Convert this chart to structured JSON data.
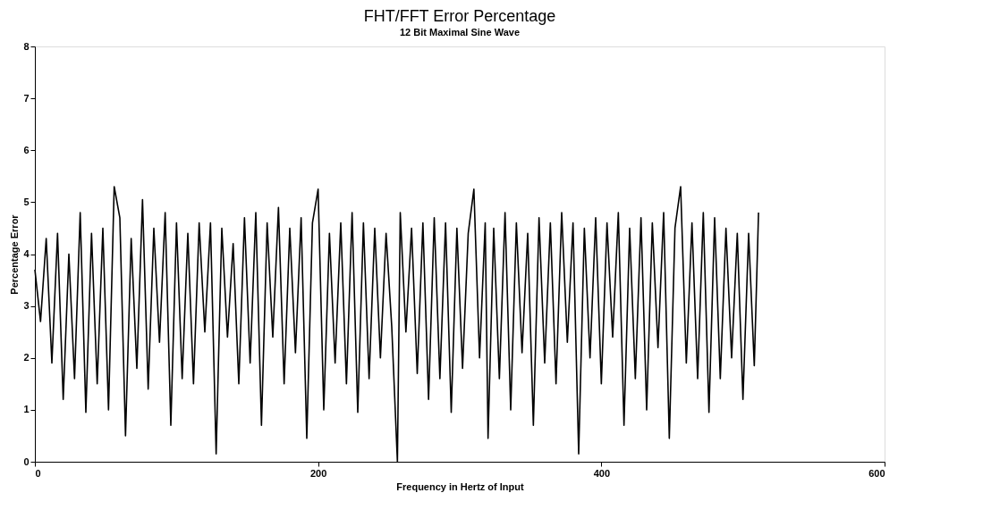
{
  "chart_data": {
    "type": "line",
    "title": "FHT/FFT Error Percentage",
    "subtitle": "12 Bit Maximal Sine Wave",
    "xlabel": "Frequency in Hertz of Input",
    "ylabel": "Percentage Error",
    "x": [
      0,
      4,
      8,
      12,
      16,
      20,
      24,
      28,
      32,
      36,
      40,
      44,
      48,
      52,
      56,
      60,
      64,
      68,
      72,
      76,
      80,
      84,
      88,
      92,
      96,
      100,
      104,
      108,
      112,
      116,
      120,
      124,
      128,
      132,
      136,
      140,
      144,
      148,
      152,
      156,
      160,
      164,
      168,
      172,
      176,
      180,
      184,
      188,
      192,
      196,
      200,
      204,
      208,
      212,
      216,
      220,
      224,
      228,
      232,
      236,
      240,
      244,
      248,
      252,
      256,
      258,
      262,
      266,
      270,
      274,
      278,
      282,
      286,
      290,
      294,
      298,
      302,
      306,
      310,
      314,
      318,
      320,
      324,
      328,
      332,
      336,
      340,
      344,
      348,
      352,
      356,
      360,
      364,
      368,
      372,
      376,
      380,
      384,
      388,
      392,
      396,
      400,
      404,
      408,
      412,
      416,
      420,
      424,
      428,
      432,
      436,
      440,
      444,
      448,
      452,
      456,
      460,
      464,
      468,
      472,
      476,
      480,
      484,
      488,
      492,
      496,
      500,
      504,
      508,
      511
    ],
    "series": [
      {
        "color": "#000000",
        "values": [
          3.7,
          2.7,
          4.3,
          1.9,
          4.4,
          1.2,
          4.0,
          1.6,
          4.8,
          0.95,
          4.4,
          1.5,
          4.5,
          1.0,
          5.3,
          4.7,
          0.5,
          4.3,
          1.8,
          5.05,
          1.4,
          4.5,
          2.3,
          4.8,
          0.7,
          4.6,
          1.6,
          4.4,
          1.5,
          4.6,
          2.5,
          4.6,
          0.15,
          4.5,
          2.4,
          4.2,
          1.5,
          4.7,
          1.9,
          4.8,
          0.7,
          4.6,
          2.4,
          4.9,
          1.5,
          4.5,
          2.1,
          4.7,
          0.45,
          4.6,
          5.25,
          1.0,
          4.4,
          1.9,
          4.6,
          1.5,
          4.8,
          0.95,
          4.6,
          1.6,
          4.5,
          2.0,
          4.4,
          2.6,
          0,
          4.8,
          2.5,
          4.5,
          1.7,
          4.6,
          1.2,
          4.7,
          1.6,
          4.6,
          0.95,
          4.5,
          1.8,
          4.4,
          5.25,
          2.0,
          4.6,
          0.45,
          4.5,
          1.6,
          4.8,
          1.0,
          4.6,
          2.1,
          4.4,
          0.7,
          4.7,
          1.9,
          4.6,
          1.5,
          4.8,
          2.3,
          4.6,
          0.15,
          4.5,
          2.0,
          4.7,
          1.5,
          4.6,
          2.4,
          4.8,
          0.7,
          4.5,
          1.6,
          4.7,
          1.0,
          4.6,
          2.2,
          4.8,
          0.45,
          4.5,
          5.3,
          1.9,
          4.6,
          1.6,
          4.8,
          0.95,
          4.7,
          1.6,
          4.5,
          2.0,
          4.4,
          1.2,
          4.4,
          1.85,
          4.8
        ]
      }
    ],
    "xlim": [
      0,
      600
    ],
    "xticks": [
      0,
      200,
      400,
      600
    ],
    "ylim": [
      0,
      8
    ],
    "yticks": [
      0,
      1,
      2,
      3,
      4,
      5,
      6,
      7,
      8
    ],
    "grid": false,
    "marker": "none",
    "line_style": "solid"
  }
}
